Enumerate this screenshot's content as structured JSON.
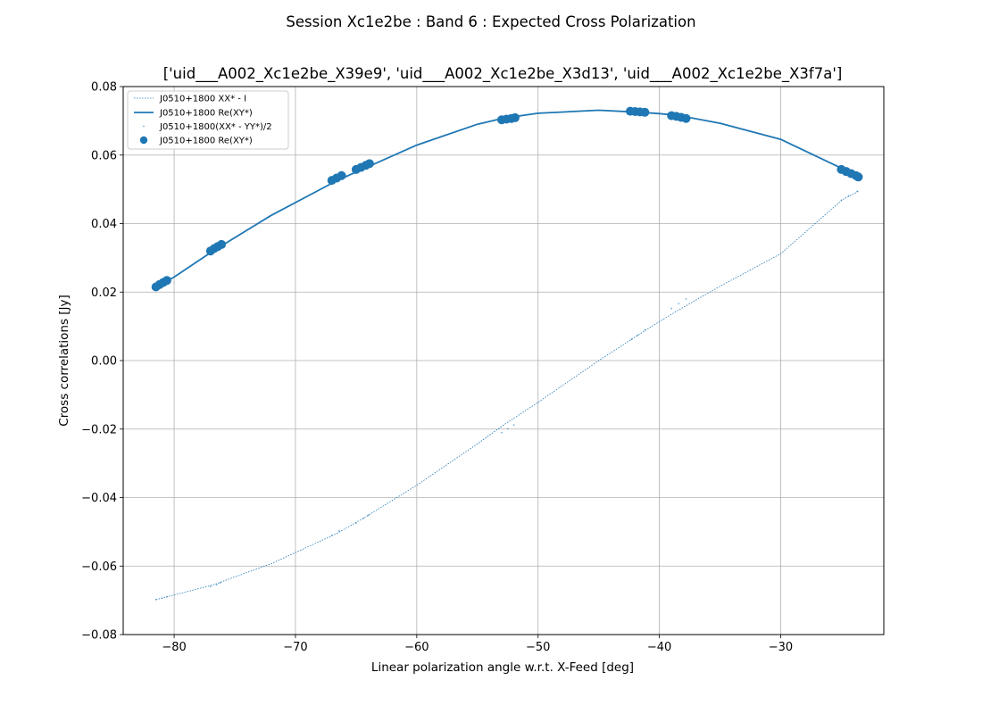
{
  "figure": {
    "suptitle": "Session Xc1e2be : Band 6 : Expected Cross Polarization"
  },
  "chart_data": {
    "type": "line",
    "title": "['uid___A002_Xc1e2be_X39e9', 'uid___A002_Xc1e2be_X3d13', 'uid___A002_Xc1e2be_X3f7a']",
    "xlabel": "Linear polarization angle w.r.t. X-Feed [deg]",
    "ylabel": "Cross correlations [Jy]",
    "xlim": [
      -84.2,
      -21.5
    ],
    "ylim": [
      -0.08,
      0.08
    ],
    "xticks": [
      -80,
      -70,
      -60,
      -50,
      -40,
      -30
    ],
    "xtick_labels": [
      "−80",
      "−70",
      "−60",
      "−50",
      "−40",
      "−30"
    ],
    "yticks": [
      -0.08,
      -0.06,
      -0.04,
      -0.02,
      0.0,
      0.02,
      0.04,
      0.06,
      0.08
    ],
    "ytick_labels": [
      "−0.08",
      "−0.06",
      "−0.04",
      "−0.02",
      "0.00",
      "0.02",
      "0.04",
      "0.06",
      "0.08"
    ],
    "grid": true,
    "legend_position": "top-left",
    "color": "#1f77b4",
    "series": [
      {
        "name": "J0510+1800 XX* - I",
        "style": "dotted-line",
        "x": [
          -81.5,
          -76.8,
          -72.0,
          -66.6,
          -64.2,
          -60.0,
          -55.0,
          -52.8,
          -50.0,
          -45.0,
          -41.6,
          -40.0,
          -38.5,
          -35.0,
          -30.0,
          -24.9,
          -23.6
        ],
        "y": [
          -0.0698,
          -0.0655,
          -0.0593,
          -0.0505,
          -0.0456,
          -0.0364,
          -0.0243,
          -0.0187,
          -0.0122,
          0.0,
          0.0078,
          0.0114,
          0.0146,
          0.0217,
          0.0312,
          0.047,
          0.0494
        ]
      },
      {
        "name": "J0510+1800 Re(XY*)",
        "style": "solid-line",
        "x": [
          -81.5,
          -80.0,
          -76.8,
          -72.0,
          -66.6,
          -64.2,
          -60.0,
          -55.0,
          -52.8,
          -50.0,
          -45.0,
          -41.6,
          -40.0,
          -38.5,
          -35.0,
          -30.0,
          -24.9,
          -23.6
        ],
        "y": [
          0.0213,
          0.0244,
          0.032,
          0.0424,
          0.0525,
          0.0563,
          0.0629,
          0.069,
          0.0708,
          0.0722,
          0.0731,
          0.0725,
          0.0721,
          0.0716,
          0.0693,
          0.0646,
          0.056,
          0.0537
        ]
      },
      {
        "name": "J0510+1800(XX* - YY*)/2",
        "style": "points",
        "x": [
          -81.5,
          -81.0,
          -80.6,
          -77.0,
          -76.5,
          -76.2,
          -67.0,
          -66.4,
          -65.0,
          -64.4,
          -64.0,
          -53.0,
          -52.5,
          -52.0,
          -42.3,
          -41.8,
          -41.2,
          -39.0,
          -38.4,
          -37.8,
          -25.0,
          -24.4,
          -23.7
        ],
        "y": [
          -0.0698,
          -0.0694,
          -0.069,
          -0.066,
          -0.0654,
          -0.0649,
          -0.051,
          -0.0497,
          -0.0475,
          -0.0461,
          -0.0452,
          -0.021,
          -0.0199,
          -0.0188,
          0.0062,
          0.0074,
          0.009,
          0.0152,
          0.0166,
          0.018,
          0.0468,
          0.0481,
          0.0494
        ]
      },
      {
        "name": "J0510+1800 Re(XY*)",
        "style": "markers",
        "x": [
          -81.5,
          -81.2,
          -80.9,
          -80.6,
          -77.0,
          -76.7,
          -76.4,
          -76.1,
          -67.0,
          -66.6,
          -66.2,
          -65.0,
          -64.6,
          -64.2,
          -63.9,
          -53.0,
          -52.6,
          -52.2,
          -51.9,
          -42.4,
          -42.0,
          -41.6,
          -41.2,
          -39.0,
          -38.6,
          -38.2,
          -37.8,
          -25.0,
          -24.6,
          -24.2,
          -23.8,
          -23.6
        ],
        "y": [
          0.0215,
          0.0222,
          0.0228,
          0.0234,
          0.032,
          0.0327,
          0.0333,
          0.0339,
          0.0526,
          0.0533,
          0.054,
          0.0558,
          0.0564,
          0.057,
          0.0575,
          0.0703,
          0.0705,
          0.0707,
          0.0709,
          0.0728,
          0.0727,
          0.0726,
          0.0725,
          0.0715,
          0.0713,
          0.071,
          0.0707,
          0.0558,
          0.0552,
          0.0546,
          0.054,
          0.0536
        ]
      }
    ]
  }
}
